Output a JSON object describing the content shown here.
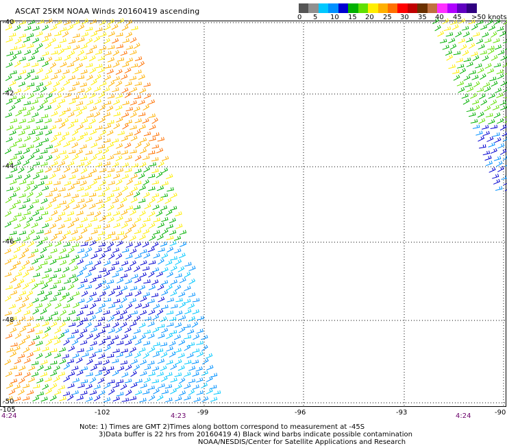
{
  "header": {
    "title": "ASCAT 25KM NOAA Winds 20160419 ascending"
  },
  "legend": {
    "colors": [
      "#555555",
      "#909090",
      "#00c8ff",
      "#0090ff",
      "#0000d0",
      "#00b000",
      "#60e000",
      "#ffee00",
      "#ffb000",
      "#ff7000",
      "#ff0000",
      "#c00000",
      "#6a3000",
      "#c07040",
      "#ff30ff",
      "#b000ff",
      "#6000c0",
      "#300080"
    ],
    "labels": [
      "0",
      "5",
      "10",
      "15",
      "20",
      "25",
      "30",
      "35",
      "40",
      "45",
      ">50 knots"
    ]
  },
  "axes": {
    "lat_labels": [
      "-40",
      "-42",
      "-44",
      "-46",
      "-48",
      "-50"
    ],
    "lon_labels": [
      "-105",
      "-102",
      "-99",
      "-96",
      "-93",
      "-90"
    ],
    "time_labels": [
      "4:24",
      "4:23",
      "4:24"
    ]
  },
  "notes": [
    "Note: 1) Times are GMT 2)Times along bottom correspond to measurement at -45S",
    "3)Data buffer is 22 hrs from 20160419 4) Black wind barbs indicate possible contamination",
    "NOAA/NESDIS/Center for Satellite Applications and Research"
  ]
}
